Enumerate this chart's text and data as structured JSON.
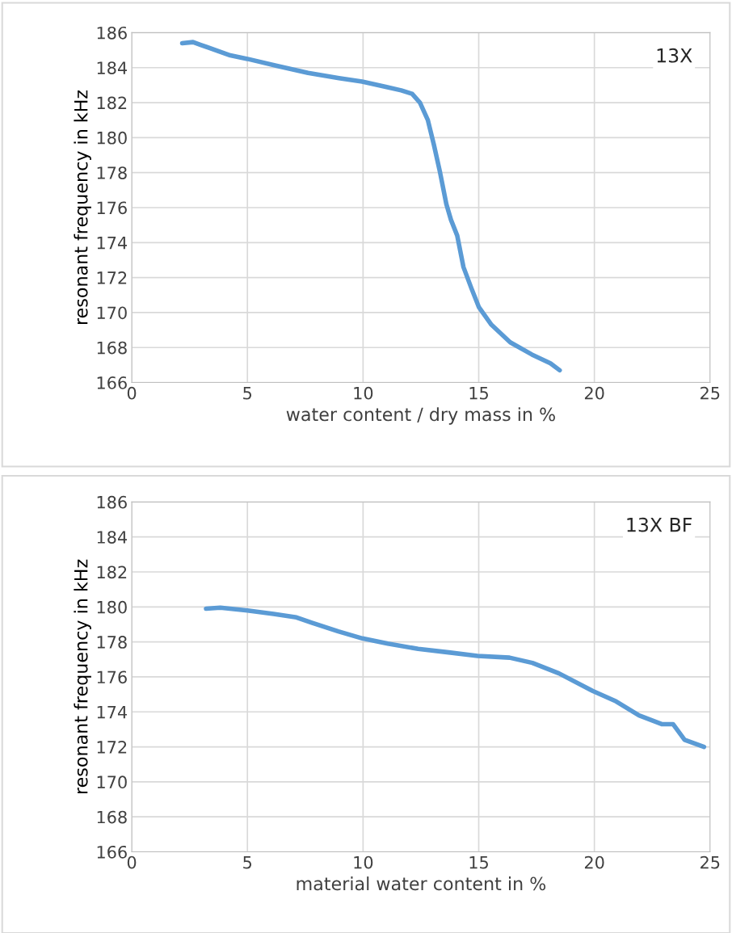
{
  "chart_data": [
    {
      "type": "line",
      "xlabel": "water content / dry mass in %",
      "ylabel": "resonant frequency in kHz",
      "annotations": [
        "13X"
      ],
      "xlim": [
        0,
        25
      ],
      "xticks": [
        0,
        5,
        10,
        15,
        20,
        25
      ],
      "ylim": [
        166,
        186
      ],
      "yticks": [
        166,
        168,
        170,
        172,
        174,
        176,
        178,
        180,
        182,
        184,
        186
      ],
      "grid": true,
      "series": [
        {
          "color": "#5b9bd5",
          "x": [
            2.18,
            2.65,
            2.98,
            4.26,
            5,
            6.27,
            7.62,
            8.96,
            9.96,
            10.98,
            11.65,
            12.12,
            12.46,
            12.8,
            13.06,
            13.33,
            13.6,
            13.8,
            14.07,
            14.34,
            14.68,
            15.01,
            15.55,
            16.36,
            17.3,
            18.1,
            18.5
          ],
          "values": [
            185.4,
            185.46,
            185.3,
            184.7,
            184.5,
            184.1,
            183.7,
            183.4,
            183.2,
            182.9,
            182.7,
            182.5,
            182.0,
            181.0,
            179.6,
            178.0,
            176.2,
            175.3,
            174.4,
            172.6,
            171.4,
            170.3,
            169.3,
            168.3,
            167.6,
            167.1,
            166.7
          ]
        }
      ]
    },
    {
      "type": "line",
      "xlabel": "material water content in %",
      "ylabel": "resonant frequency in kHz",
      "annotations": [
        "13X BF"
      ],
      "xlim": [
        0,
        25
      ],
      "xticks": [
        0,
        5,
        10,
        15,
        20,
        25
      ],
      "ylim": [
        166,
        186
      ],
      "yticks": [
        166,
        168,
        170,
        172,
        174,
        176,
        178,
        180,
        182,
        184,
        186
      ],
      "grid": true,
      "series": [
        {
          "color": "#5b9bd5",
          "x": [
            3.21,
            3.83,
            5,
            6.13,
            7.12,
            7.78,
            8.93,
            9.97,
            11.07,
            12.38,
            13.7,
            14.95,
            16.33,
            17.32,
            18.47,
            19.92,
            20.94,
            21.93,
            22.91,
            23.4,
            23.9,
            24.74
          ],
          "values": [
            179.9,
            179.96,
            179.8,
            179.6,
            179.4,
            179.1,
            178.6,
            178.2,
            177.9,
            177.6,
            177.4,
            177.2,
            177.1,
            176.8,
            176.2,
            175.2,
            174.6,
            173.8,
            173.3,
            173.3,
            172.4,
            172.0
          ]
        }
      ]
    }
  ]
}
